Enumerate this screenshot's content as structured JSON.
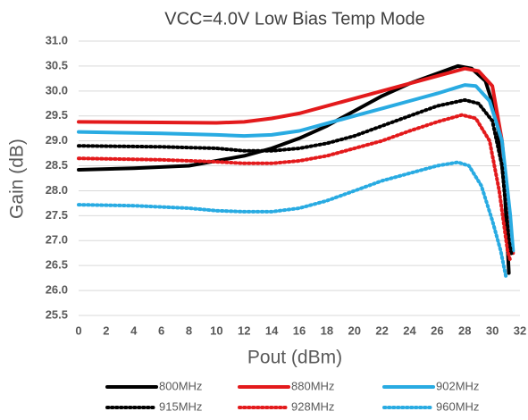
{
  "chart_data": {
    "type": "line",
    "title": "VCC=4.0V Low Bias Temp Mode",
    "x_label": "Pout (dBm)",
    "y_label": "Gain (dB)",
    "xlim": [
      0,
      32
    ],
    "xticks": [
      0,
      2,
      4,
      6,
      8,
      10,
      12,
      14,
      16,
      18,
      20,
      22,
      24,
      26,
      28,
      30,
      32
    ],
    "ylim": [
      25.5,
      31
    ],
    "yticks": [
      25.5,
      {
        "value": 26,
        "label": "26.0"
      },
      26.5,
      {
        "value": 27,
        "label": "27.0"
      },
      27.5,
      {
        "value": 28,
        "label": "28.0"
      },
      28.5,
      {
        "value": 29,
        "label": "29.0"
      },
      29.5,
      {
        "value": 30,
        "label": "30.0"
      },
      30.5,
      {
        "value": 31,
        "label": "31.0"
      }
    ],
    "grid": true,
    "legend": "bottom",
    "series": [
      {
        "name": "800MHz",
        "color": "#000000",
        "dash": "solid",
        "x": [
          0,
          4,
          8,
          10,
          12,
          14,
          16,
          18,
          20,
          22,
          24,
          26,
          27.5,
          28.5,
          29.5,
          30.3,
          30.9,
          31.2
        ],
        "values": [
          28.42,
          28.45,
          28.5,
          28.6,
          28.7,
          28.85,
          29.05,
          29.3,
          29.6,
          29.9,
          30.15,
          30.35,
          30.5,
          30.45,
          30.2,
          29.5,
          28,
          26.35
        ]
      },
      {
        "name": "880MHz",
        "color": "#e31a1c",
        "dash": "solid",
        "x": [
          0,
          6,
          10,
          12,
          14,
          16,
          18,
          20,
          22,
          24,
          26,
          28,
          29,
          30,
          30.7,
          31.2,
          31.5
        ],
        "values": [
          29.38,
          29.37,
          29.36,
          29.38,
          29.45,
          29.55,
          29.7,
          29.85,
          30,
          30.15,
          30.3,
          30.45,
          30.4,
          30.1,
          29,
          27.5,
          26.75
        ]
      },
      {
        "name": "902MHz",
        "color": "#29abe2",
        "dash": "solid",
        "x": [
          0,
          6,
          10,
          12,
          14,
          16,
          18,
          20,
          22,
          24,
          26,
          28,
          28.8,
          29.8,
          30.7,
          31.3,
          31.5
        ],
        "values": [
          29.18,
          29.15,
          29.12,
          29.1,
          29.12,
          29.2,
          29.35,
          29.5,
          29.65,
          29.8,
          29.95,
          30.12,
          30.1,
          29.8,
          29,
          27.5,
          26.8
        ]
      },
      {
        "name": "915MHz",
        "color": "#000000",
        "dash": "dotted",
        "x": [
          0,
          6,
          10,
          12,
          14,
          16,
          18,
          20,
          22,
          24,
          26,
          28,
          29,
          30,
          30.7,
          31.2,
          31.4
        ],
        "values": [
          28.9,
          28.88,
          28.85,
          28.8,
          28.8,
          28.85,
          28.95,
          29.1,
          29.3,
          29.5,
          29.7,
          29.82,
          29.75,
          29.4,
          28.5,
          27,
          26.7
        ]
      },
      {
        "name": "928MHz",
        "color": "#e31a1c",
        "dash": "dotted",
        "x": [
          0,
          6,
          10,
          12,
          14,
          16,
          18,
          20,
          22,
          24,
          26,
          27.8,
          28.8,
          29.8,
          30.5,
          31.1,
          31.3
        ],
        "values": [
          28.65,
          28.62,
          28.58,
          28.55,
          28.55,
          28.6,
          28.7,
          28.85,
          29,
          29.2,
          29.38,
          29.52,
          29.45,
          29,
          28,
          26.8,
          26.6
        ]
      },
      {
        "name": "960MHz",
        "color": "#29abe2",
        "dash": "dotted",
        "x": [
          0,
          4,
          8,
          10,
          12,
          14,
          16,
          18,
          20,
          22,
          24,
          26,
          27.5,
          28.3,
          29.2,
          30,
          30.6,
          31
        ],
        "values": [
          27.72,
          27.7,
          27.65,
          27.6,
          27.58,
          27.58,
          27.65,
          27.8,
          28,
          28.2,
          28.35,
          28.5,
          28.57,
          28.5,
          28.1,
          27.4,
          26.8,
          26.25
        ]
      }
    ]
  }
}
